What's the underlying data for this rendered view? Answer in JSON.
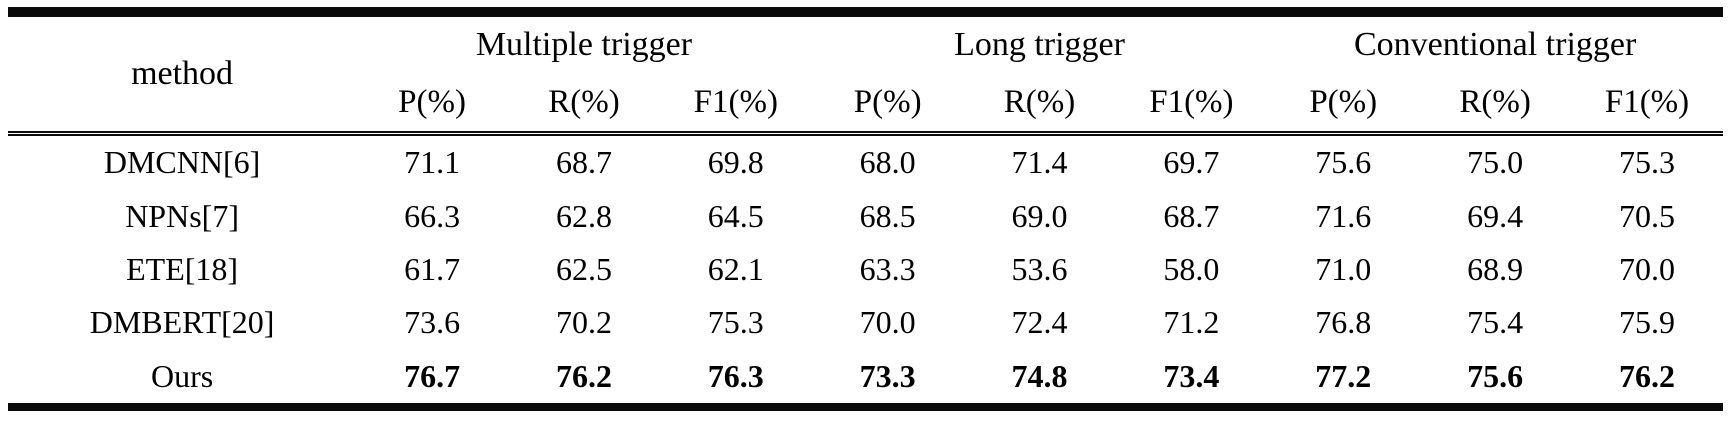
{
  "table": {
    "method_header": "method",
    "group_headers": [
      {
        "label": "Multiple trigger"
      },
      {
        "label": "Long trigger"
      },
      {
        "label": "Conventional trigger"
      }
    ],
    "metric_headers": [
      "P(%)",
      "R(%)",
      "F1(%)",
      "P(%)",
      "R(%)",
      "F1(%)",
      "P(%)",
      "R(%)",
      "F1(%)"
    ],
    "rows": [
      {
        "method": "DMCNN[6]",
        "values": [
          "71.1",
          "68.7",
          "69.8",
          "68.0",
          "71.4",
          "69.7",
          "75.6",
          "75.0",
          "75.3"
        ]
      },
      {
        "method": "NPNs[7]",
        "values": [
          "66.3",
          "62.8",
          "64.5",
          "68.5",
          "69.0",
          "68.7",
          "71.6",
          "69.4",
          "70.5"
        ]
      },
      {
        "method": "ETE[18]",
        "values": [
          "61.7",
          "62.5",
          "62.1",
          "63.3",
          "53.6",
          "58.0",
          "71.0",
          "68.9",
          "70.0"
        ]
      },
      {
        "method": "DMBERT[20]",
        "values": [
          "73.6",
          "70.2",
          "75.3",
          "70.0",
          "72.4",
          "71.2",
          "76.8",
          "75.4",
          "75.9"
        ]
      },
      {
        "method": "Ours",
        "values": [
          "76.7",
          "76.2",
          "76.3",
          "73.3",
          "74.8",
          "73.4",
          "77.2",
          "75.6",
          "76.2"
        ]
      }
    ],
    "colors": {
      "text": "#000000",
      "background": "#ffffff",
      "rule": "#0a0a0a"
    }
  },
  "chart_data": {
    "type": "table",
    "title": "",
    "column_groups": [
      "Multiple trigger",
      "Long trigger",
      "Conventional trigger"
    ],
    "columns": [
      "method",
      "Multiple trigger P(%)",
      "Multiple trigger R(%)",
      "Multiple trigger F1(%)",
      "Long trigger P(%)",
      "Long trigger R(%)",
      "Long trigger F1(%)",
      "Conventional trigger P(%)",
      "Conventional trigger R(%)",
      "Conventional trigger F1(%)"
    ],
    "rows": [
      [
        "DMCNN[6]",
        71.1,
        68.7,
        69.8,
        68.0,
        71.4,
        69.7,
        75.6,
        75.0,
        75.3
      ],
      [
        "NPNs[7]",
        66.3,
        62.8,
        64.5,
        68.5,
        69.0,
        68.7,
        71.6,
        69.4,
        70.5
      ],
      [
        "ETE[18]",
        61.7,
        62.5,
        62.1,
        63.3,
        53.6,
        58.0,
        71.0,
        68.9,
        70.0
      ],
      [
        "DMBERT[20]",
        73.6,
        70.2,
        75.3,
        70.0,
        72.4,
        71.2,
        76.8,
        75.4,
        75.9
      ],
      [
        "Ours",
        76.7,
        76.2,
        76.3,
        73.3,
        74.8,
        73.4,
        77.2,
        75.6,
        76.2
      ]
    ],
    "bold_rows": [
      "Ours"
    ]
  }
}
